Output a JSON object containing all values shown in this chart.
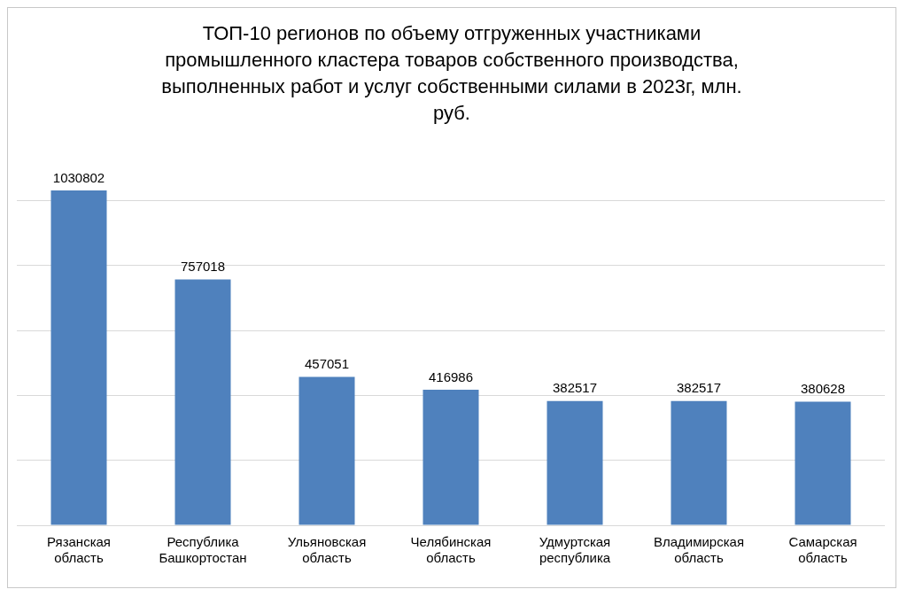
{
  "chart_data": {
    "type": "bar",
    "title": "ТОП-10 регионов по объему отгруженных участниками промышленного кластера товаров собственного производства, выполненных работ и услуг собственными силами в 2023г, млн. руб.",
    "categories": [
      "Рязанская область",
      "Республика Башкортостан",
      "Ульяновская область",
      "Челябинская область",
      "Удмуртская республика",
      "Владимирская область",
      "Самарская область"
    ],
    "values": [
      1030802,
      757018,
      457051,
      416986,
      382517,
      382517,
      380628
    ],
    "color": "#4f81bd",
    "yticks": [
      {
        "value": 0,
        "label": null
      },
      {
        "value": 200000,
        "label": null
      },
      {
        "value": 400000,
        "label": null
      },
      {
        "value": 600000,
        "label": null
      },
      {
        "value": 800000,
        "label": null
      },
      {
        "value": 1000000,
        "label": null
      }
    ],
    "tick_labels": "x",
    "grid": "y",
    "data_labels": true
  }
}
